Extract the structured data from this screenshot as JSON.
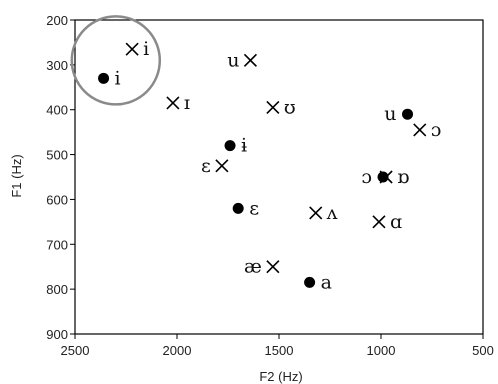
{
  "chart_data": {
    "type": "scatter",
    "xlabel": "F2 (Hz)",
    "ylabel": "F1 (Hz)",
    "x_axis": {
      "range": [
        2500,
        500
      ],
      "reversed": true,
      "ticks": [
        2500,
        2000,
        1500,
        1000,
        500
      ]
    },
    "y_axis": {
      "range": [
        200,
        900
      ],
      "reversed": true,
      "ticks": [
        200,
        300,
        400,
        500,
        600,
        700,
        800,
        900
      ]
    },
    "grid": false,
    "series": [
      {
        "marker": "cross",
        "points": [
          {
            "label": "i",
            "x": 2220,
            "y": 265,
            "label_side": "right"
          },
          {
            "label": "u",
            "x": 1640,
            "y": 290,
            "label_side": "left"
          },
          {
            "label": "ɪ",
            "x": 2020,
            "y": 385,
            "label_side": "right"
          },
          {
            "label": "ʊ",
            "x": 1530,
            "y": 395,
            "label_side": "right"
          },
          {
            "label": "ɔ",
            "x": 810,
            "y": 445,
            "label_side": "right"
          },
          {
            "label": "ɛ",
            "x": 1780,
            "y": 525,
            "label_side": "left"
          },
          {
            "label": "ɒ",
            "x": 975,
            "y": 550,
            "label_side": "right"
          },
          {
            "label": "ʌ",
            "x": 1320,
            "y": 630,
            "label_side": "right"
          },
          {
            "label": "ɑ",
            "x": 1010,
            "y": 650,
            "label_side": "right"
          },
          {
            "label": "æ",
            "x": 1530,
            "y": 750,
            "label_side": "left"
          }
        ]
      },
      {
        "marker": "dot",
        "points": [
          {
            "label": "i",
            "x": 2360,
            "y": 330,
            "label_side": "right"
          },
          {
            "label": "u",
            "x": 870,
            "y": 410,
            "label_side": "left"
          },
          {
            "label": "ɨ",
            "x": 1740,
            "y": 480,
            "label_side": "right"
          },
          {
            "label": "ɔ",
            "x": 990,
            "y": 550,
            "label_side": "left"
          },
          {
            "label": "ɛ",
            "x": 1700,
            "y": 620,
            "label_side": "right"
          },
          {
            "label": "a",
            "x": 1350,
            "y": 785,
            "label_side": "right"
          }
        ]
      }
    ],
    "highlight": {
      "shape": "circle",
      "cx": 2300,
      "cy": 290
    }
  }
}
